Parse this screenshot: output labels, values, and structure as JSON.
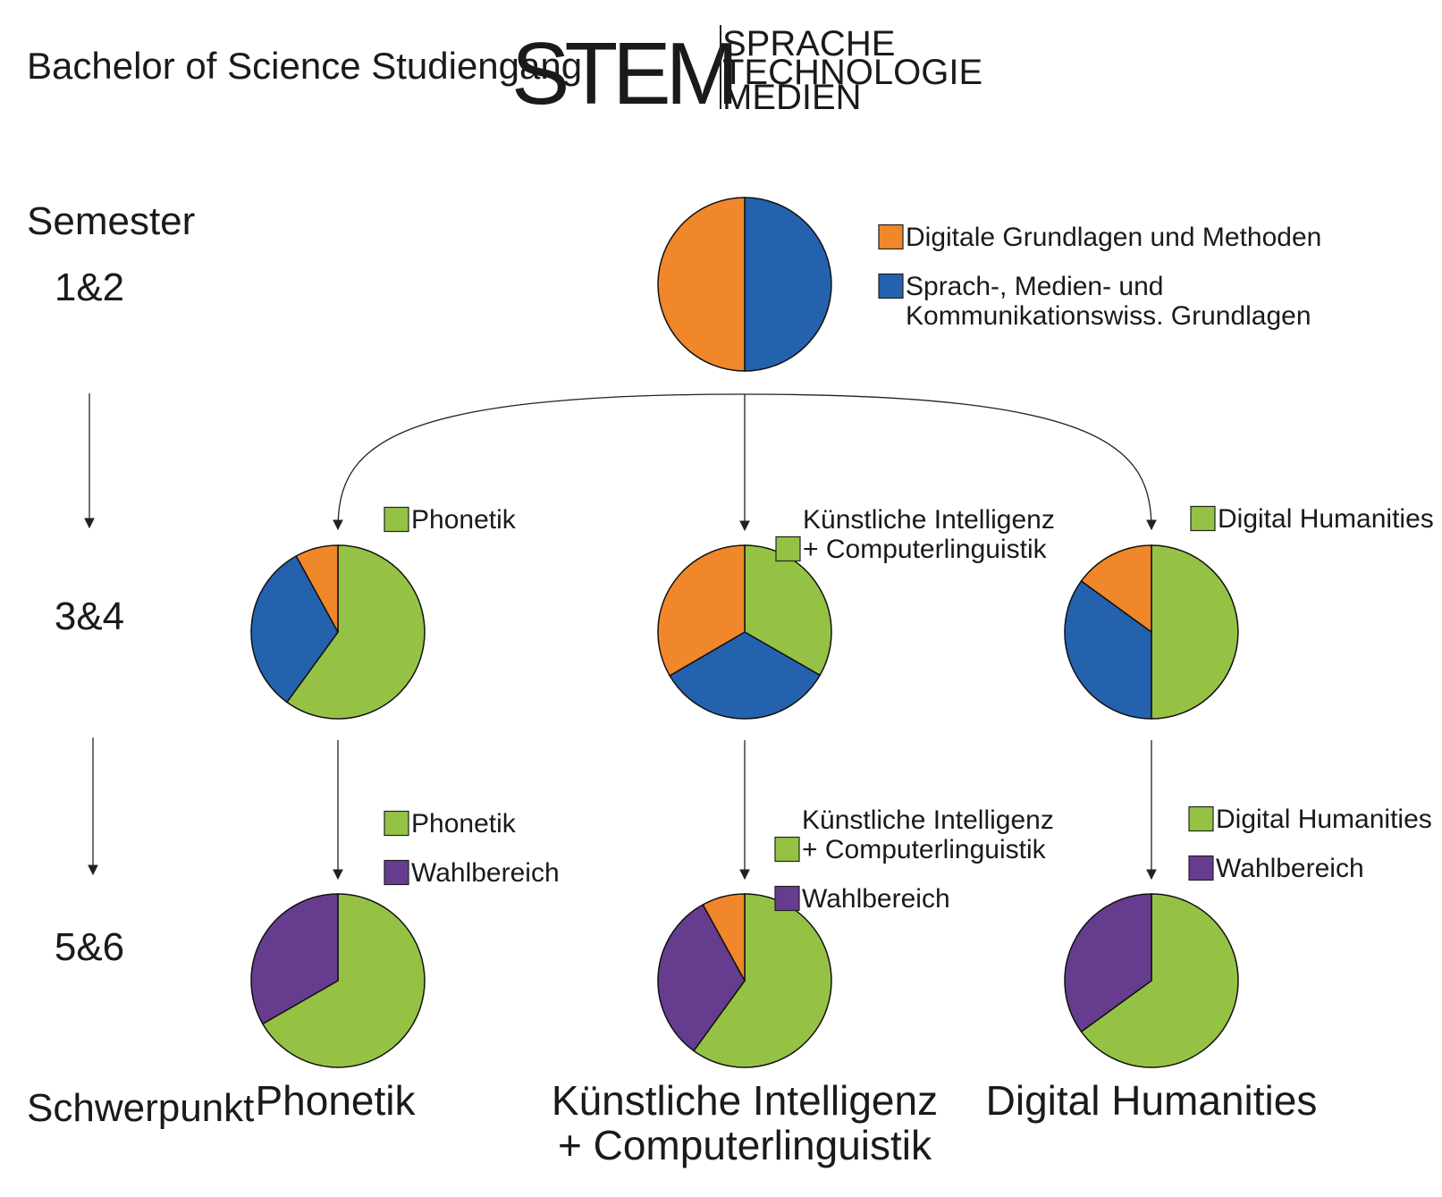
{
  "header": {
    "title": "Bachelor of Science Studiengang",
    "logo_main": "STEM",
    "logo_lines": [
      "SPRACHE",
      "TECHNOLOGIE",
      "MEDIEN"
    ]
  },
  "semester_axis": {
    "label": "Semester",
    "levels": [
      "1&2",
      "3&4",
      "5&6"
    ],
    "footer_label": "Schwerpunkt"
  },
  "colors": {
    "orange": "#F0872A",
    "blue": "#2462AD",
    "green": "#95C244",
    "purple": "#663C8F"
  },
  "chart_data": [
    {
      "type": "pie",
      "name": "semester-1-2",
      "semester": "1&2",
      "slices": [
        {
          "label": "Sprach-, Medien- und Kommunikationswiss. Grundlagen",
          "value": 50,
          "color": "#2462AD"
        },
        {
          "label": "Digitale Grundlagen und Methoden",
          "value": 50,
          "color": "#F0872A"
        }
      ],
      "legend": [
        {
          "color": "#F0872A",
          "lines": [
            "Digitale Grundlagen und Methoden"
          ]
        },
        {
          "color": "#2462AD",
          "lines": [
            "Sprach-, Medien- und",
            "Kommunikationswiss. Grundlagen"
          ]
        }
      ]
    },
    {
      "type": "pie",
      "name": "semester-3-4-phonetik",
      "semester": "3&4",
      "slices": [
        {
          "label": "Phonetik",
          "value": 60,
          "color": "#95C244"
        },
        {
          "label": "Sprach-, Medien- und Kommunikationswiss. Grundlagen",
          "value": 32,
          "color": "#2462AD"
        },
        {
          "label": "Digitale Grundlagen und Methoden",
          "value": 8,
          "color": "#F0872A"
        }
      ],
      "legend": [
        {
          "color": "#95C244",
          "lines": [
            "Phonetik"
          ]
        }
      ]
    },
    {
      "type": "pie",
      "name": "semester-3-4-ki",
      "semester": "3&4",
      "slices": [
        {
          "label": "Künstliche Intelligenz + Computerlinguistik",
          "value": 33.3,
          "color": "#95C244"
        },
        {
          "label": "Sprach-, Medien- und Kommunikationswiss. Grundlagen",
          "value": 33.3,
          "color": "#2462AD"
        },
        {
          "label": "Digitale Grundlagen und Methoden",
          "value": 33.4,
          "color": "#F0872A"
        }
      ],
      "legend": [
        {
          "color": "#95C244",
          "lines": [
            "Künstliche Intelligenz",
            "+ Computerlinguistik"
          ]
        }
      ]
    },
    {
      "type": "pie",
      "name": "semester-3-4-dh",
      "semester": "3&4",
      "slices": [
        {
          "label": "Digital Humanities",
          "value": 50,
          "color": "#95C244"
        },
        {
          "label": "Sprach-, Medien- und Kommunikationswiss. Grundlagen",
          "value": 35,
          "color": "#2462AD"
        },
        {
          "label": "Digitale Grundlagen und Methoden",
          "value": 15,
          "color": "#F0872A"
        }
      ],
      "legend": [
        {
          "color": "#95C244",
          "lines": [
            "Digital Humanities"
          ]
        }
      ]
    },
    {
      "type": "pie",
      "name": "semester-5-6-phonetik",
      "semester": "5&6",
      "slices": [
        {
          "label": "Phonetik",
          "value": 66.7,
          "color": "#95C244"
        },
        {
          "label": "Wahlbereich",
          "value": 33.3,
          "color": "#663C8F"
        }
      ],
      "legend": [
        {
          "color": "#95C244",
          "lines": [
            "Phonetik"
          ]
        },
        {
          "color": "#663C8F",
          "lines": [
            "Wahlbereich"
          ]
        }
      ]
    },
    {
      "type": "pie",
      "name": "semester-5-6-ki",
      "semester": "5&6",
      "slices": [
        {
          "label": "Künstliche Intelligenz + Computerlinguistik",
          "value": 60,
          "color": "#95C244"
        },
        {
          "label": "Wahlbereich",
          "value": 32,
          "color": "#663C8F"
        },
        {
          "label": "Digitale Grundlagen und Methoden",
          "value": 8,
          "color": "#F0872A"
        }
      ],
      "legend": [
        {
          "color": "#95C244",
          "lines": [
            "Künstliche Intelligenz",
            "+ Computerlinguistik"
          ]
        },
        {
          "color": "#663C8F",
          "lines": [
            "Wahlbereich"
          ]
        }
      ]
    },
    {
      "type": "pie",
      "name": "semester-5-6-dh",
      "semester": "5&6",
      "slices": [
        {
          "label": "Digital Humanities",
          "value": 65,
          "color": "#95C244"
        },
        {
          "label": "Wahlbereich",
          "value": 35,
          "color": "#663C8F"
        }
      ],
      "legend": [
        {
          "color": "#95C244",
          "lines": [
            "Digital Humanities"
          ]
        },
        {
          "color": "#663C8F",
          "lines": [
            "Wahlbereich"
          ]
        }
      ]
    }
  ],
  "tracks": [
    {
      "name": "phonetik",
      "lines": [
        "Phonetik"
      ]
    },
    {
      "name": "ki",
      "lines": [
        "Künstliche Intelligenz",
        "+ Computerlinguistik"
      ]
    },
    {
      "name": "dh",
      "lines": [
        "Digital Humanities"
      ]
    }
  ]
}
